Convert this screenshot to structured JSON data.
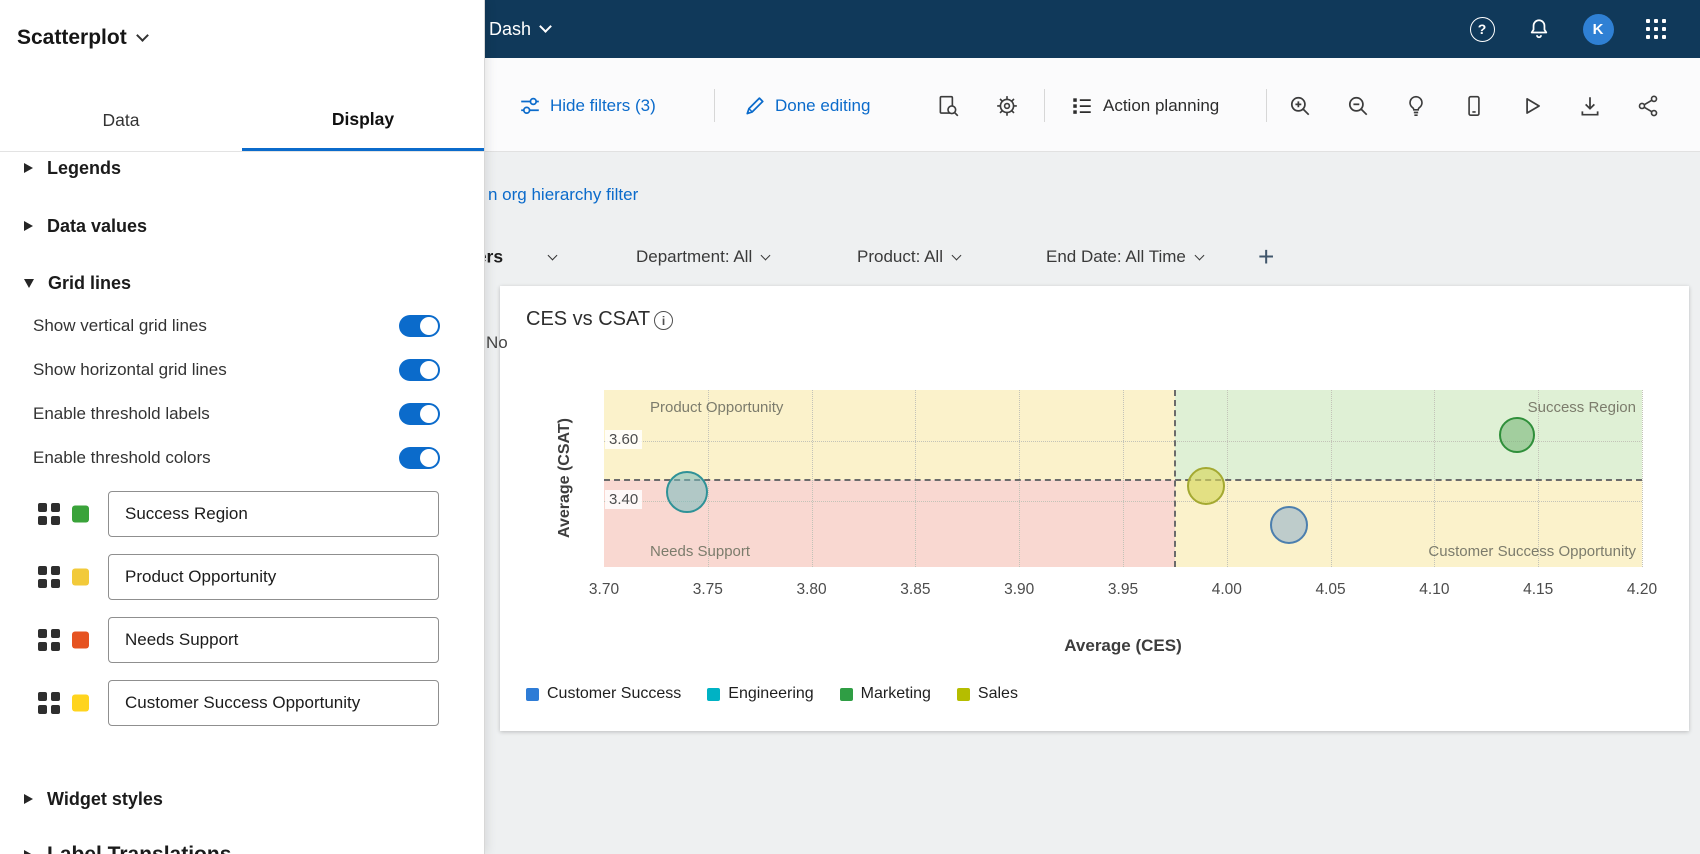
{
  "colors": {
    "accent_blue": "#0b6bcb",
    "header_bg": "#10395a",
    "toggle_on": "#0b6bcb"
  },
  "top_bar": {
    "dashboard_name_fragment": "Dash",
    "avatar_initial": "K",
    "icons": [
      "help",
      "notifications",
      "avatar",
      "app-switcher"
    ]
  },
  "toolbar": {
    "hide_filters": "Hide filters (3)",
    "done_editing": "Done editing",
    "action_planning": "Action planning",
    "icons": [
      "page-preview",
      "settings-gear",
      "text-zoom-in",
      "text-zoom-out",
      "lightbulb",
      "mobile-preview",
      "play",
      "download",
      "share"
    ]
  },
  "hierarchy_link_fragment": "n org hierarchy filter",
  "filter_bar": {
    "filters_dropdown_fragment": "ters",
    "filters": [
      "Department: All",
      "Product: All",
      "End Date: All Time"
    ],
    "add_filter": "+"
  },
  "occluded_text_fragment": "No",
  "edit_panel": {
    "widget_type_label": "Scatterplot",
    "tabs": [
      {
        "label": "Data",
        "active": false
      },
      {
        "label": "Display",
        "active": true
      }
    ],
    "sections": [
      {
        "label": "Legends",
        "expanded": false
      },
      {
        "label": "Data values",
        "expanded": false
      },
      {
        "label": "Grid lines",
        "expanded": true
      },
      {
        "label": "Widget styles",
        "expanded": false
      },
      {
        "label": "Label Translations",
        "expanded": false
      }
    ],
    "grid_lines_settings": {
      "toggles": [
        {
          "label": "Show vertical grid lines",
          "on": true
        },
        {
          "label": "Show horizontal grid lines",
          "on": true
        },
        {
          "label": "Enable threshold labels",
          "on": true
        },
        {
          "label": "Enable threshold colors",
          "on": true
        }
      ],
      "threshold_regions": [
        {
          "label": "Success Region",
          "color": "#3aa33a"
        },
        {
          "label": "Product Opportunity",
          "color": "#f2ca3a"
        },
        {
          "label": "Needs Support",
          "color": "#e65321"
        },
        {
          "label": "Customer Success Opportunity",
          "color": "#ffd41e"
        }
      ]
    }
  },
  "chart_data": {
    "type": "scatter",
    "title": "CES vs CSAT",
    "xlabel": "Average (CES)",
    "ylabel": "Average (CSAT)",
    "xlim": [
      3.7,
      4.2
    ],
    "ylim": [
      3.18,
      3.77
    ],
    "x_ticks": [
      3.7,
      3.75,
      3.8,
      3.85,
      3.9,
      3.95,
      4.0,
      4.05,
      4.1,
      4.15,
      4.2
    ],
    "y_ticks": [
      3.6,
      3.4
    ],
    "grid": true,
    "legend_position": "bottom",
    "thresholds": {
      "x": 3.975,
      "y": 3.47
    },
    "quadrants": [
      {
        "position": "top-left",
        "label": "Product Opportunity",
        "color": "#fbf2cb"
      },
      {
        "position": "top-right",
        "label": "Success Region",
        "color": "#dff0d5"
      },
      {
        "position": "bottom-left",
        "label": "Needs Support",
        "color": "#f9d8d1"
      },
      {
        "position": "bottom-right",
        "label": "Customer Success Opportunity",
        "color": "#fbf2cb"
      }
    ],
    "series": [
      {
        "name": "Customer Success",
        "legend_color": "#2e7cd6",
        "stroke": "#4c7fae",
        "fill": "rgba(140,173,204,0.55)",
        "points": [
          {
            "x": 4.03,
            "y": 3.32,
            "r": 19
          }
        ]
      },
      {
        "name": "Engineering",
        "legend_color": "#00b2c4",
        "stroke": "#2f9297",
        "fill": "rgba(118,188,190,0.55)",
        "points": [
          {
            "x": 3.74,
            "y": 3.43,
            "r": 21
          }
        ]
      },
      {
        "name": "Marketing",
        "legend_color": "#2f9e44",
        "stroke": "#2f8f3a",
        "fill": "rgba(121,184,121,0.60)",
        "points": [
          {
            "x": 4.14,
            "y": 3.62,
            "r": 18
          }
        ]
      },
      {
        "name": "Sales",
        "legend_color": "#b5bd00",
        "stroke": "#a4a931",
        "fill": "rgba(213,214,92,0.65)",
        "points": [
          {
            "x": 3.99,
            "y": 3.45,
            "r": 19
          }
        ]
      }
    ]
  }
}
